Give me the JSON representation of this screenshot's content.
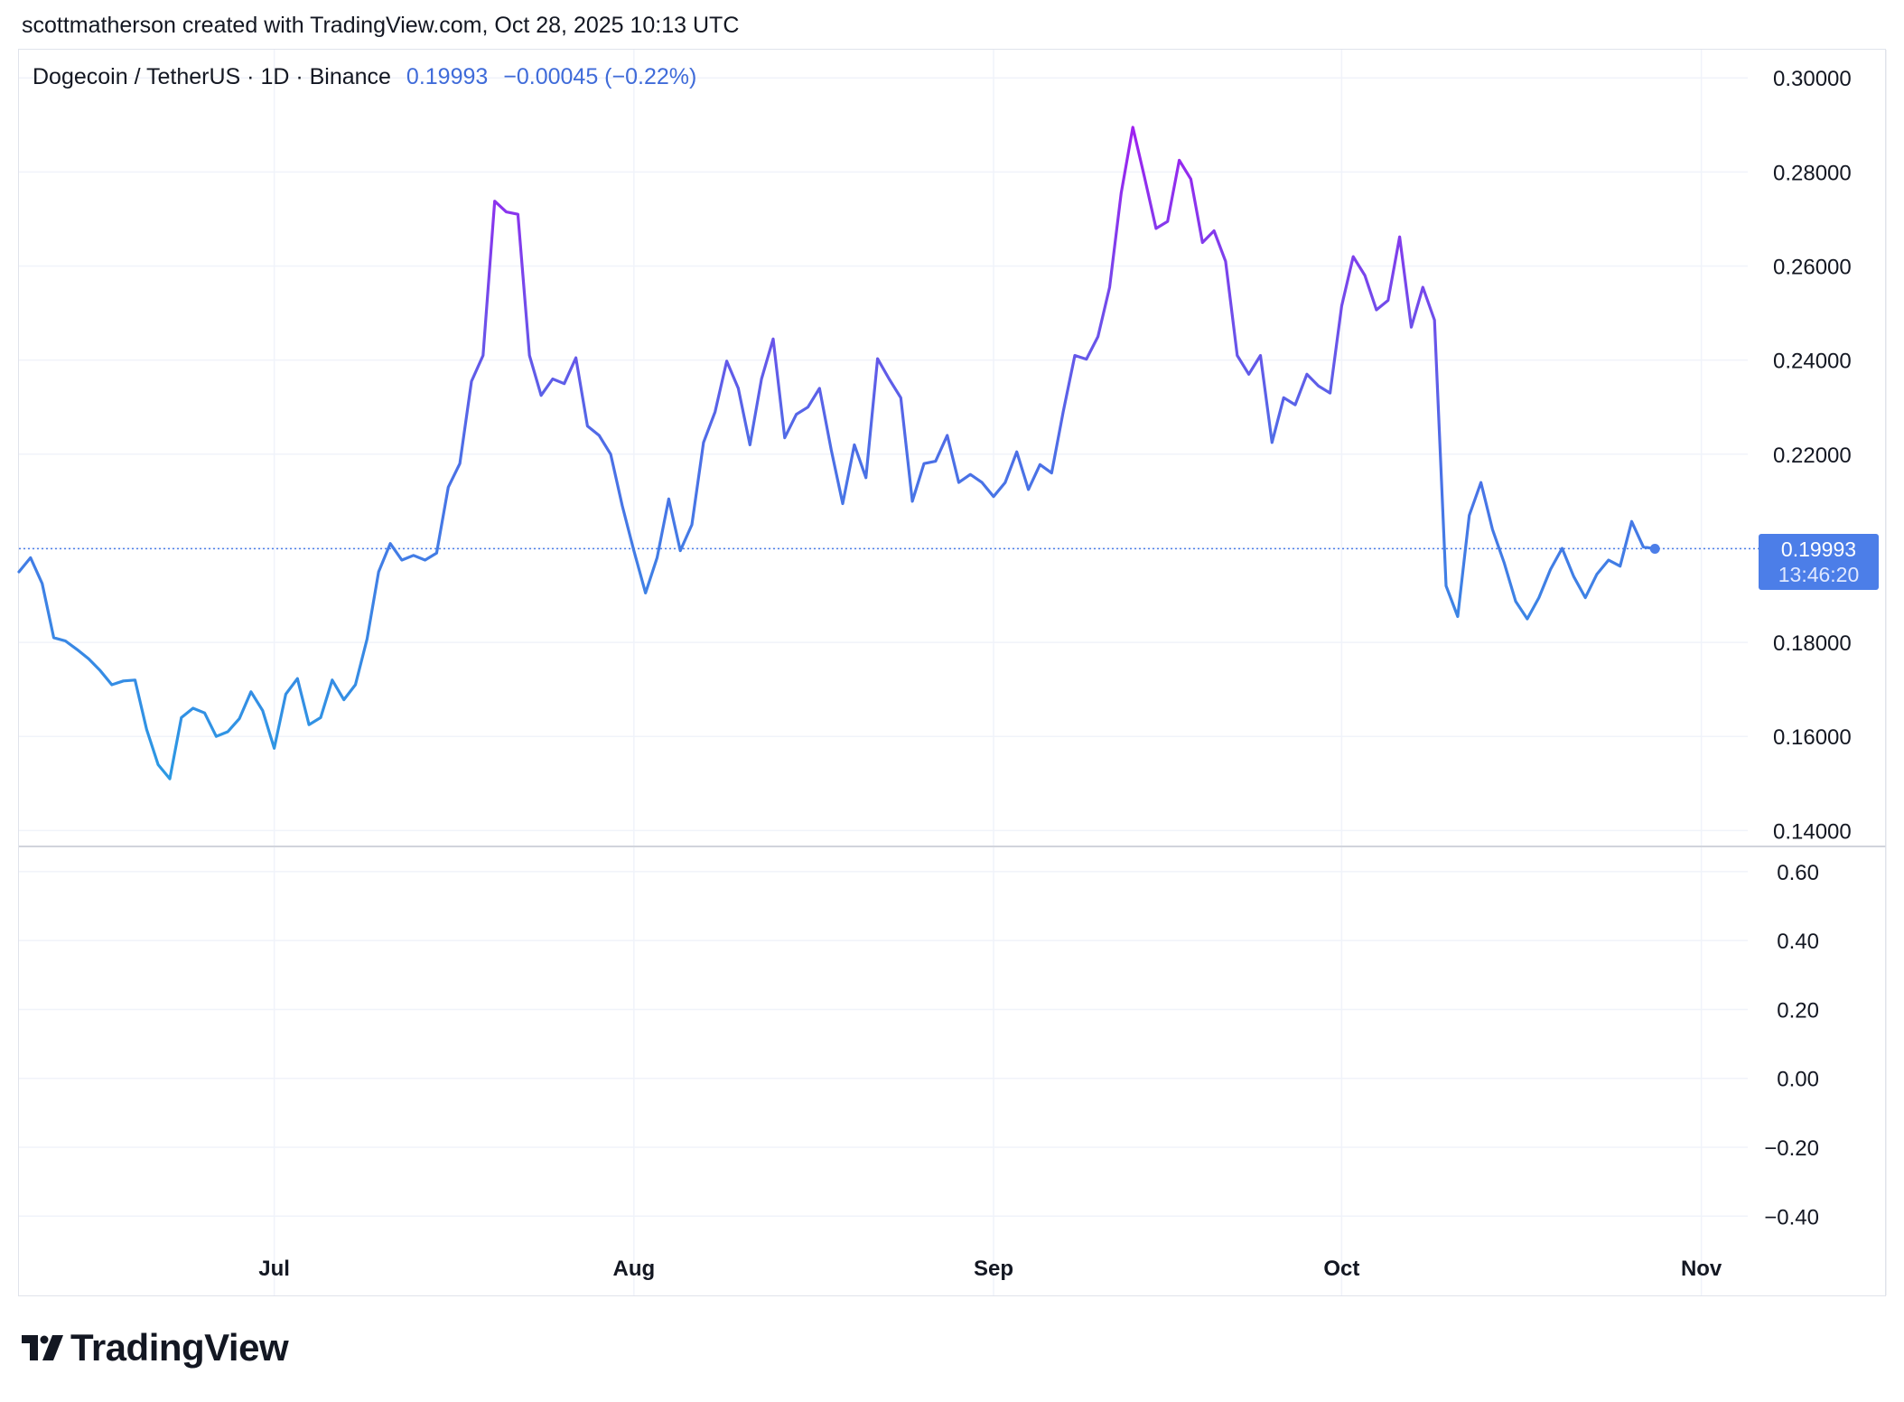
{
  "header": {
    "attribution": "scottmatherson created with TradingView.com, Oct 28, 2025 10:13 UTC"
  },
  "legend": {
    "symbol": "Dogecoin / TetherUS · 1D · Binance",
    "price": "0.19993",
    "change": "−0.00045 (−0.22%)"
  },
  "badge": {
    "price": "0.19993",
    "countdown": "13:46:20"
  },
  "brand": {
    "name": "TradingView"
  },
  "colors": {
    "line_low": "#2b9ae3",
    "line_mid": "#4c6fe6",
    "line_high": "#a020f0",
    "grid": "#f0f3fa",
    "badge": "#4c7ee8"
  },
  "chart_data": [
    {
      "type": "line",
      "title": "Dogecoin / TetherUS · 1D · Binance",
      "xlabel": "",
      "ylabel": "",
      "x_ticks": [
        "Jul",
        "Aug",
        "Sep",
        "Oct",
        "Nov"
      ],
      "x_tick_dates": [
        "2025-07-01",
        "2025-08-01",
        "2025-09-01",
        "2025-10-01",
        "2025-11-01"
      ],
      "y_ticks": [
        "0.14000",
        "0.16000",
        "0.18000",
        "0.20000",
        "0.22000",
        "0.24000",
        "0.26000",
        "0.28000",
        "0.30000"
      ],
      "ylim": [
        0.137,
        0.306
      ],
      "xlim": [
        "2025-06-09",
        "2025-11-05"
      ],
      "gradient_by_value": true,
      "last_price_line": 0.19993,
      "grid": true,
      "series": [
        {
          "x": [
            "2025-06-09",
            "2025-06-10",
            "2025-06-11",
            "2025-06-12",
            "2025-06-13",
            "2025-06-14",
            "2025-06-15",
            "2025-06-16",
            "2025-06-17",
            "2025-06-18",
            "2025-06-19",
            "2025-06-20",
            "2025-06-21",
            "2025-06-22",
            "2025-06-23",
            "2025-06-24",
            "2025-06-25",
            "2025-06-26",
            "2025-06-27",
            "2025-06-28",
            "2025-06-29",
            "2025-06-30",
            "2025-07-01",
            "2025-07-02",
            "2025-07-03",
            "2025-07-04",
            "2025-07-05",
            "2025-07-06",
            "2025-07-07",
            "2025-07-08",
            "2025-07-09",
            "2025-07-10",
            "2025-07-11",
            "2025-07-12",
            "2025-07-13",
            "2025-07-14",
            "2025-07-15",
            "2025-07-16",
            "2025-07-17",
            "2025-07-18",
            "2025-07-19",
            "2025-07-20",
            "2025-07-21",
            "2025-07-22",
            "2025-07-23",
            "2025-07-24",
            "2025-07-25",
            "2025-07-26",
            "2025-07-27",
            "2025-07-28",
            "2025-07-29",
            "2025-07-30",
            "2025-07-31",
            "2025-08-01",
            "2025-08-02",
            "2025-08-03",
            "2025-08-04",
            "2025-08-05",
            "2025-08-06",
            "2025-08-07",
            "2025-08-08",
            "2025-08-09",
            "2025-08-10",
            "2025-08-11",
            "2025-08-12",
            "2025-08-13",
            "2025-08-14",
            "2025-08-15",
            "2025-08-16",
            "2025-08-17",
            "2025-08-18",
            "2025-08-19",
            "2025-08-20",
            "2025-08-21",
            "2025-08-22",
            "2025-08-23",
            "2025-08-24",
            "2025-08-25",
            "2025-08-26",
            "2025-08-27",
            "2025-08-28",
            "2025-08-29",
            "2025-08-30",
            "2025-08-31",
            "2025-09-01",
            "2025-09-02",
            "2025-09-03",
            "2025-09-04",
            "2025-09-05",
            "2025-09-06",
            "2025-09-07",
            "2025-09-08",
            "2025-09-09",
            "2025-09-10",
            "2025-09-11",
            "2025-09-12",
            "2025-09-13",
            "2025-09-14",
            "2025-09-15",
            "2025-09-16",
            "2025-09-17",
            "2025-09-18",
            "2025-09-19",
            "2025-09-20",
            "2025-09-21",
            "2025-09-22",
            "2025-09-23",
            "2025-09-24",
            "2025-09-25",
            "2025-09-26",
            "2025-09-27",
            "2025-09-28",
            "2025-09-29",
            "2025-09-30",
            "2025-10-01",
            "2025-10-02",
            "2025-10-03",
            "2025-10-04",
            "2025-10-05",
            "2025-10-06",
            "2025-10-07",
            "2025-10-08",
            "2025-10-09",
            "2025-10-10",
            "2025-10-11",
            "2025-10-12",
            "2025-10-13",
            "2025-10-14",
            "2025-10-15",
            "2025-10-16",
            "2025-10-17",
            "2025-10-18",
            "2025-10-19",
            "2025-10-20",
            "2025-10-21",
            "2025-10-22",
            "2025-10-23",
            "2025-10-24",
            "2025-10-25",
            "2025-10-26",
            "2025-10-27",
            "2025-10-28"
          ],
          "y": [
            0.195,
            0.198,
            0.1925,
            0.181,
            0.1803,
            0.1785,
            0.1765,
            0.174,
            0.171,
            0.1718,
            0.172,
            0.1615,
            0.154,
            0.151,
            0.164,
            0.166,
            0.165,
            0.16,
            0.161,
            0.1638,
            0.1695,
            0.1655,
            0.1575,
            0.169,
            0.1723,
            0.1625,
            0.164,
            0.172,
            0.1678,
            0.171,
            0.1807,
            0.195,
            0.201,
            0.1975,
            0.1985,
            0.1975,
            0.199,
            0.213,
            0.218,
            0.2355,
            0.241,
            0.2738,
            0.2715,
            0.271,
            0.241,
            0.2325,
            0.236,
            0.235,
            0.2405,
            0.226,
            0.224,
            0.22,
            0.209,
            0.1995,
            0.1905,
            0.198,
            0.2105,
            0.1995,
            0.205,
            0.2225,
            0.229,
            0.2398,
            0.234,
            0.222,
            0.236,
            0.2445,
            0.2235,
            0.2285,
            0.23,
            0.234,
            0.221,
            0.2095,
            0.222,
            0.215,
            0.2403,
            0.236,
            0.232,
            0.21,
            0.218,
            0.2185,
            0.224,
            0.214,
            0.2157,
            0.214,
            0.211,
            0.214,
            0.2205,
            0.2125,
            0.2178,
            0.216,
            0.229,
            0.241,
            0.2402,
            0.245,
            0.2555,
            0.2755,
            0.2895,
            0.279,
            0.268,
            0.2695,
            0.2825,
            0.2785,
            0.265,
            0.2675,
            0.261,
            0.241,
            0.237,
            0.241,
            0.2225,
            0.232,
            0.2305,
            0.237,
            0.2345,
            0.233,
            0.2515,
            0.262,
            0.258,
            0.2507,
            0.2527,
            0.2662,
            0.247,
            0.2555,
            0.2485,
            0.192,
            0.1855,
            0.207,
            0.214,
            0.204,
            0.197,
            0.1887,
            0.185,
            0.1895,
            0.1955,
            0.2,
            0.194,
            0.1895,
            0.1945,
            0.1975,
            0.1962,
            0.2057,
            0.2003,
            0.1999
          ]
        }
      ]
    },
    {
      "type": "line",
      "title": "",
      "y_ticks": [
        "0.60",
        "0.40",
        "0.20",
        "0.00",
        "−0.20",
        "−0.40"
      ],
      "ylim": [
        -0.63,
        0.66
      ],
      "series": []
    }
  ]
}
